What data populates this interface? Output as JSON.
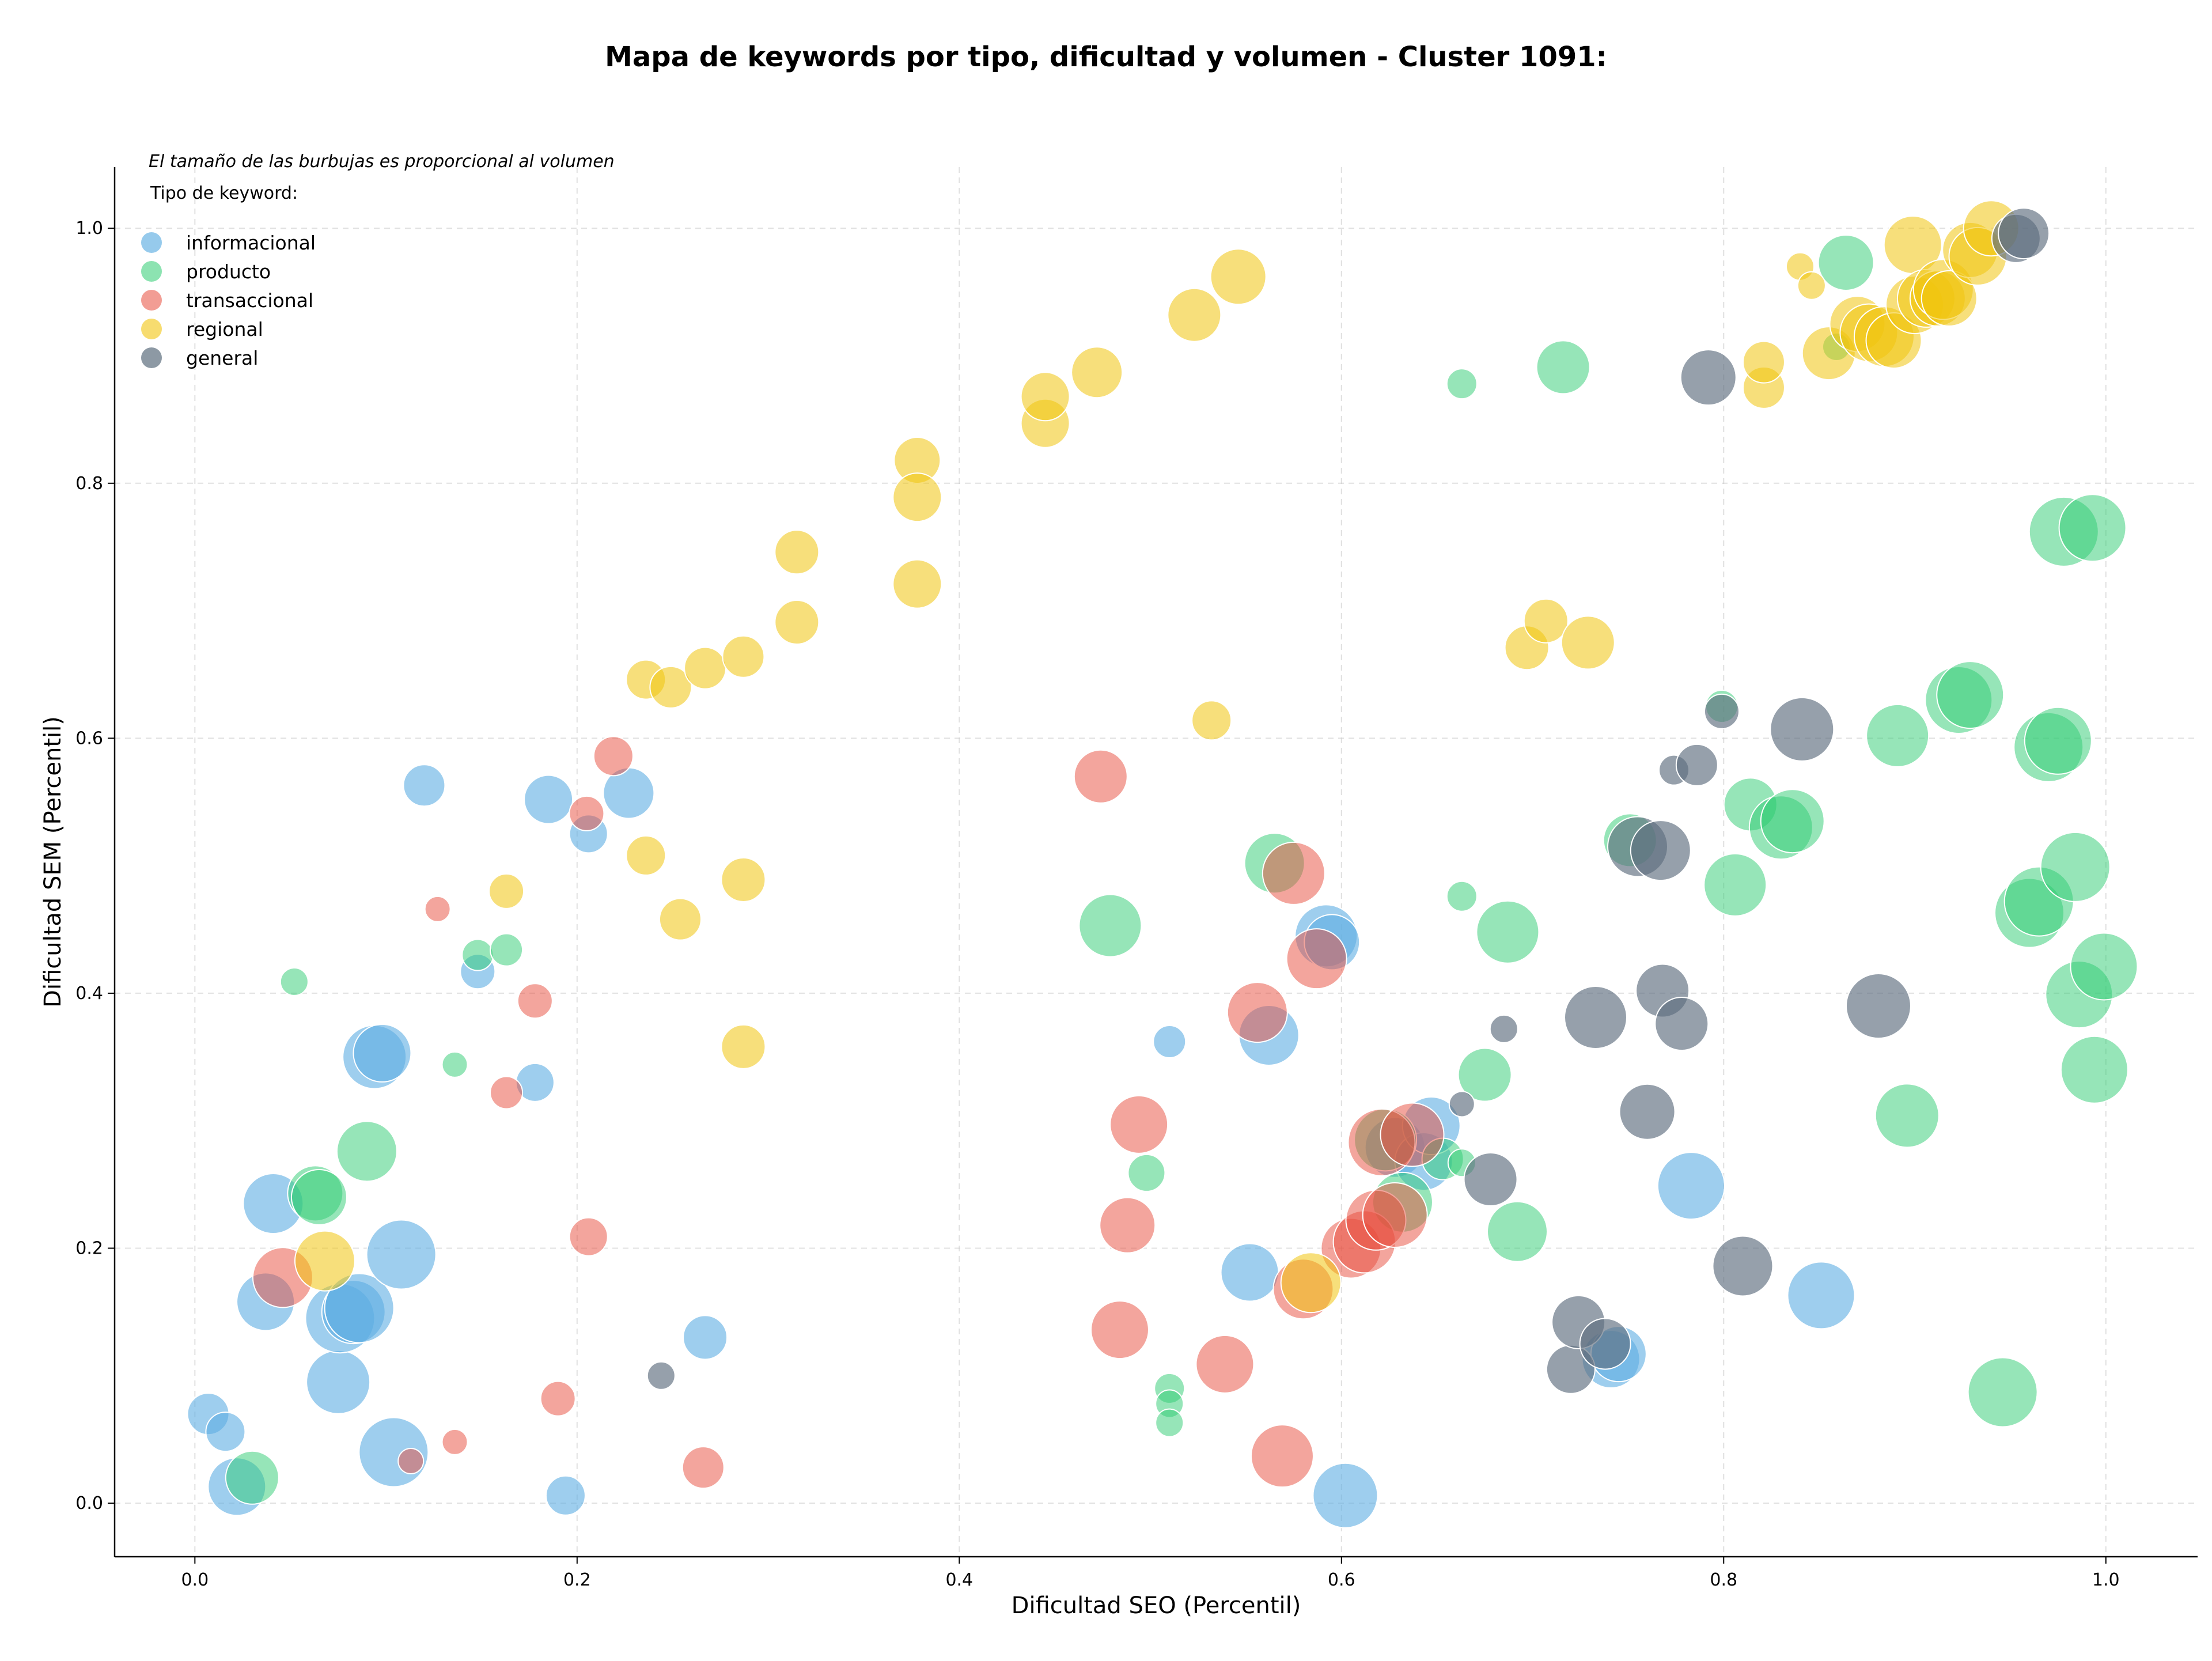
{
  "chart_data": {
    "type": "scatter",
    "title": "Mapa de keywords por tipo, dificultad y volumen - Cluster 1091:",
    "xlabel": "Dificultad SEO (Percentil)",
    "ylabel": "Dificultad SEM (Percentil)",
    "xlim": [
      -0.042,
      1.048
    ],
    "ylim": [
      -0.042,
      1.048
    ],
    "x_ticks": [
      "0.0",
      "0.2",
      "0.4",
      "0.6",
      "0.8",
      "1.0"
    ],
    "y_ticks": [
      "0.0",
      "0.2",
      "0.4",
      "0.6",
      "0.8",
      "1.0"
    ],
    "grid": true,
    "legend_position": "top-left",
    "size_note": "El tamaño de las burbujas es proporcional al volumen",
    "legend_title": "Tipo de keyword:",
    "series": [
      {
        "name": "informacional",
        "color": "#5dade2",
        "opacity": 0.6,
        "points": [
          [
            0.007,
            0.07,
            36
          ],
          [
            0.016,
            0.056,
            34
          ],
          [
            0.022,
            0.013,
            50
          ],
          [
            0.037,
            0.158,
            50
          ],
          [
            0.041,
            0.235,
            52
          ],
          [
            0.075,
            0.095,
            55
          ],
          [
            0.076,
            0.145,
            60
          ],
          [
            0.083,
            0.15,
            55
          ],
          [
            0.086,
            0.153,
            60
          ],
          [
            0.094,
            0.35,
            55
          ],
          [
            0.098,
            0.353,
            50
          ],
          [
            0.104,
            0.04,
            60
          ],
          [
            0.108,
            0.195,
            60
          ],
          [
            0.12,
            0.563,
            36
          ],
          [
            0.148,
            0.417,
            30
          ],
          [
            0.178,
            0.33,
            33
          ],
          [
            0.185,
            0.552,
            42
          ],
          [
            0.194,
            0.006,
            34
          ],
          [
            0.206,
            0.525,
            33
          ],
          [
            0.227,
            0.557,
            44
          ],
          [
            0.267,
            0.13,
            38
          ],
          [
            0.51,
            0.362,
            28
          ],
          [
            0.552,
            0.181,
            50
          ],
          [
            0.562,
            0.367,
            52
          ],
          [
            0.592,
            0.445,
            54
          ],
          [
            0.595,
            0.44,
            48
          ],
          [
            0.602,
            0.006,
            56
          ],
          [
            0.628,
            0.279,
            52
          ],
          [
            0.643,
            0.268,
            50
          ],
          [
            0.647,
            0.296,
            50
          ],
          [
            0.741,
            0.113,
            50
          ],
          [
            0.745,
            0.117,
            48
          ],
          [
            0.783,
            0.249,
            58
          ],
          [
            0.851,
            0.163,
            58
          ]
        ]
      },
      {
        "name": "producto",
        "color": "#2ecc71",
        "opacity": 0.5,
        "points": [
          [
            0.03,
            0.02,
            46
          ],
          [
            0.052,
            0.409,
            24
          ],
          [
            0.063,
            0.243,
            48
          ],
          [
            0.065,
            0.24,
            48
          ],
          [
            0.09,
            0.276,
            52
          ],
          [
            0.136,
            0.344,
            22
          ],
          [
            0.148,
            0.43,
            27
          ],
          [
            0.163,
            0.434,
            28
          ],
          [
            0.479,
            0.453,
            54
          ],
          [
            0.498,
            0.259,
            32
          ],
          [
            0.51,
            0.09,
            26
          ],
          [
            0.51,
            0.078,
            24
          ],
          [
            0.51,
            0.063,
            24
          ],
          [
            0.565,
            0.502,
            52
          ],
          [
            0.623,
            0.285,
            54
          ],
          [
            0.632,
            0.236,
            52
          ],
          [
            0.653,
            0.27,
            36
          ],
          [
            0.663,
            0.267,
            24
          ],
          [
            0.663,
            0.878,
            26
          ],
          [
            0.663,
            0.476,
            26
          ],
          [
            0.675,
            0.336,
            46
          ],
          [
            0.687,
            0.448,
            54
          ],
          [
            0.692,
            0.213,
            52
          ],
          [
            0.716,
            0.891,
            46
          ],
          [
            0.751,
            0.52,
            46
          ],
          [
            0.799,
            0.625,
            28
          ],
          [
            0.806,
            0.485,
            54
          ],
          [
            0.814,
            0.548,
            46
          ],
          [
            0.83,
            0.53,
            55
          ],
          [
            0.836,
            0.535,
            55
          ],
          [
            0.859,
            0.907,
            24
          ],
          [
            0.864,
            0.973,
            48
          ],
          [
            0.891,
            0.602,
            54
          ],
          [
            0.896,
            0.304,
            55
          ],
          [
            0.923,
            0.63,
            58
          ],
          [
            0.929,
            0.634,
            58
          ],
          [
            0.946,
            0.087,
            60
          ],
          [
            0.96,
            0.463,
            60
          ],
          [
            0.965,
            0.472,
            60
          ],
          [
            0.97,
            0.593,
            60
          ],
          [
            0.975,
            0.598,
            58
          ],
          [
            0.978,
            0.762,
            60
          ],
          [
            0.986,
            0.399,
            58
          ],
          [
            0.993,
            0.765,
            58
          ],
          [
            0.994,
            0.34,
            58
          ],
          [
            0.999,
            0.421,
            58
          ],
          [
            0.984,
            0.499,
            60
          ]
        ]
      },
      {
        "name": "transaccional",
        "color": "#e74c3c",
        "opacity": 0.5,
        "points": [
          [
            0.046,
            0.177,
            52
          ],
          [
            0.113,
            0.033,
            22
          ],
          [
            0.127,
            0.466,
            22
          ],
          [
            0.136,
            0.048,
            22
          ],
          [
            0.163,
            0.322,
            28
          ],
          [
            0.178,
            0.394,
            30
          ],
          [
            0.19,
            0.082,
            30
          ],
          [
            0.205,
            0.541,
            30
          ],
          [
            0.206,
            0.209,
            33
          ],
          [
            0.219,
            0.586,
            34
          ],
          [
            0.266,
            0.028,
            36
          ],
          [
            0.474,
            0.57,
            46
          ],
          [
            0.484,
            0.136,
            50
          ],
          [
            0.488,
            0.218,
            48
          ],
          [
            0.494,
            0.297,
            50
          ],
          [
            0.539,
            0.109,
            50
          ],
          [
            0.556,
            0.385,
            52
          ],
          [
            0.569,
            0.037,
            54
          ],
          [
            0.575,
            0.494,
            54
          ],
          [
            0.58,
            0.168,
            52
          ],
          [
            0.587,
            0.427,
            52
          ],
          [
            0.605,
            0.2,
            52
          ],
          [
            0.612,
            0.205,
            54
          ],
          [
            0.618,
            0.222,
            52
          ],
          [
            0.621,
            0.283,
            58
          ],
          [
            0.628,
            0.226,
            56
          ],
          [
            0.637,
            0.289,
            55
          ]
        ]
      },
      {
        "name": "regional",
        "color": "#f1c40f",
        "opacity": 0.55,
        "points": [
          [
            0.068,
            0.19,
            52
          ],
          [
            0.163,
            0.48,
            30
          ],
          [
            0.236,
            0.508,
            34
          ],
          [
            0.236,
            0.646,
            34
          ],
          [
            0.249,
            0.64,
            36
          ],
          [
            0.254,
            0.458,
            36
          ],
          [
            0.267,
            0.655,
            36
          ],
          [
            0.287,
            0.489,
            38
          ],
          [
            0.287,
            0.664,
            36
          ],
          [
            0.287,
            0.358,
            38
          ],
          [
            0.315,
            0.746,
            38
          ],
          [
            0.315,
            0.691,
            38
          ],
          [
            0.378,
            0.818,
            40
          ],
          [
            0.378,
            0.789,
            42
          ],
          [
            0.378,
            0.721,
            42
          ],
          [
            0.445,
            0.847,
            42
          ],
          [
            0.445,
            0.868,
            42
          ],
          [
            0.472,
            0.887,
            44
          ],
          [
            0.523,
            0.932,
            46
          ],
          [
            0.532,
            0.614,
            34
          ],
          [
            0.546,
            0.962,
            48
          ],
          [
            0.584,
            0.173,
            52
          ],
          [
            0.697,
            0.671,
            38
          ],
          [
            0.707,
            0.692,
            38
          ],
          [
            0.729,
            0.675,
            46
          ],
          [
            0.821,
            0.875,
            36
          ],
          [
            0.821,
            0.895,
            36
          ],
          [
            0.84,
            0.97,
            24
          ],
          [
            0.846,
            0.955,
            24
          ],
          [
            0.855,
            0.902,
            46
          ],
          [
            0.87,
            0.925,
            48
          ],
          [
            0.876,
            0.918,
            50
          ],
          [
            0.884,
            0.915,
            52
          ],
          [
            0.889,
            0.912,
            48
          ],
          [
            0.899,
            0.987,
            50
          ],
          [
            0.9,
            0.94,
            50
          ],
          [
            0.906,
            0.945,
            50
          ],
          [
            0.912,
            0.945,
            48
          ],
          [
            0.915,
            0.952,
            52
          ],
          [
            0.918,
            0.945,
            48
          ],
          [
            0.929,
            0.983,
            48
          ],
          [
            0.933,
            0.978,
            50
          ],
          [
            0.94,
            1.0,
            48
          ]
        ]
      },
      {
        "name": "general",
        "color": "#5d6d7e",
        "opacity": 0.65,
        "points": [
          [
            0.244,
            0.1,
            24
          ],
          [
            0.663,
            0.313,
            22
          ],
          [
            0.685,
            0.372,
            24
          ],
          [
            0.678,
            0.254,
            46
          ],
          [
            0.72,
            0.105,
            42
          ],
          [
            0.724,
            0.142,
            46
          ],
          [
            0.733,
            0.381,
            54
          ],
          [
            0.738,
            0.125,
            44
          ],
          [
            0.755,
            0.515,
            52
          ],
          [
            0.76,
            0.307,
            48
          ],
          [
            0.767,
            0.512,
            52
          ],
          [
            0.768,
            0.402,
            46
          ],
          [
            0.774,
            0.575,
            26
          ],
          [
            0.778,
            0.376,
            46
          ],
          [
            0.786,
            0.579,
            36
          ],
          [
            0.792,
            0.883,
            48
          ],
          [
            0.799,
            0.621,
            30
          ],
          [
            0.81,
            0.186,
            52
          ],
          [
            0.841,
            0.607,
            55
          ],
          [
            0.881,
            0.39,
            56
          ],
          [
            0.953,
            0.992,
            42
          ],
          [
            0.957,
            0.996,
            44
          ]
        ]
      }
    ]
  }
}
